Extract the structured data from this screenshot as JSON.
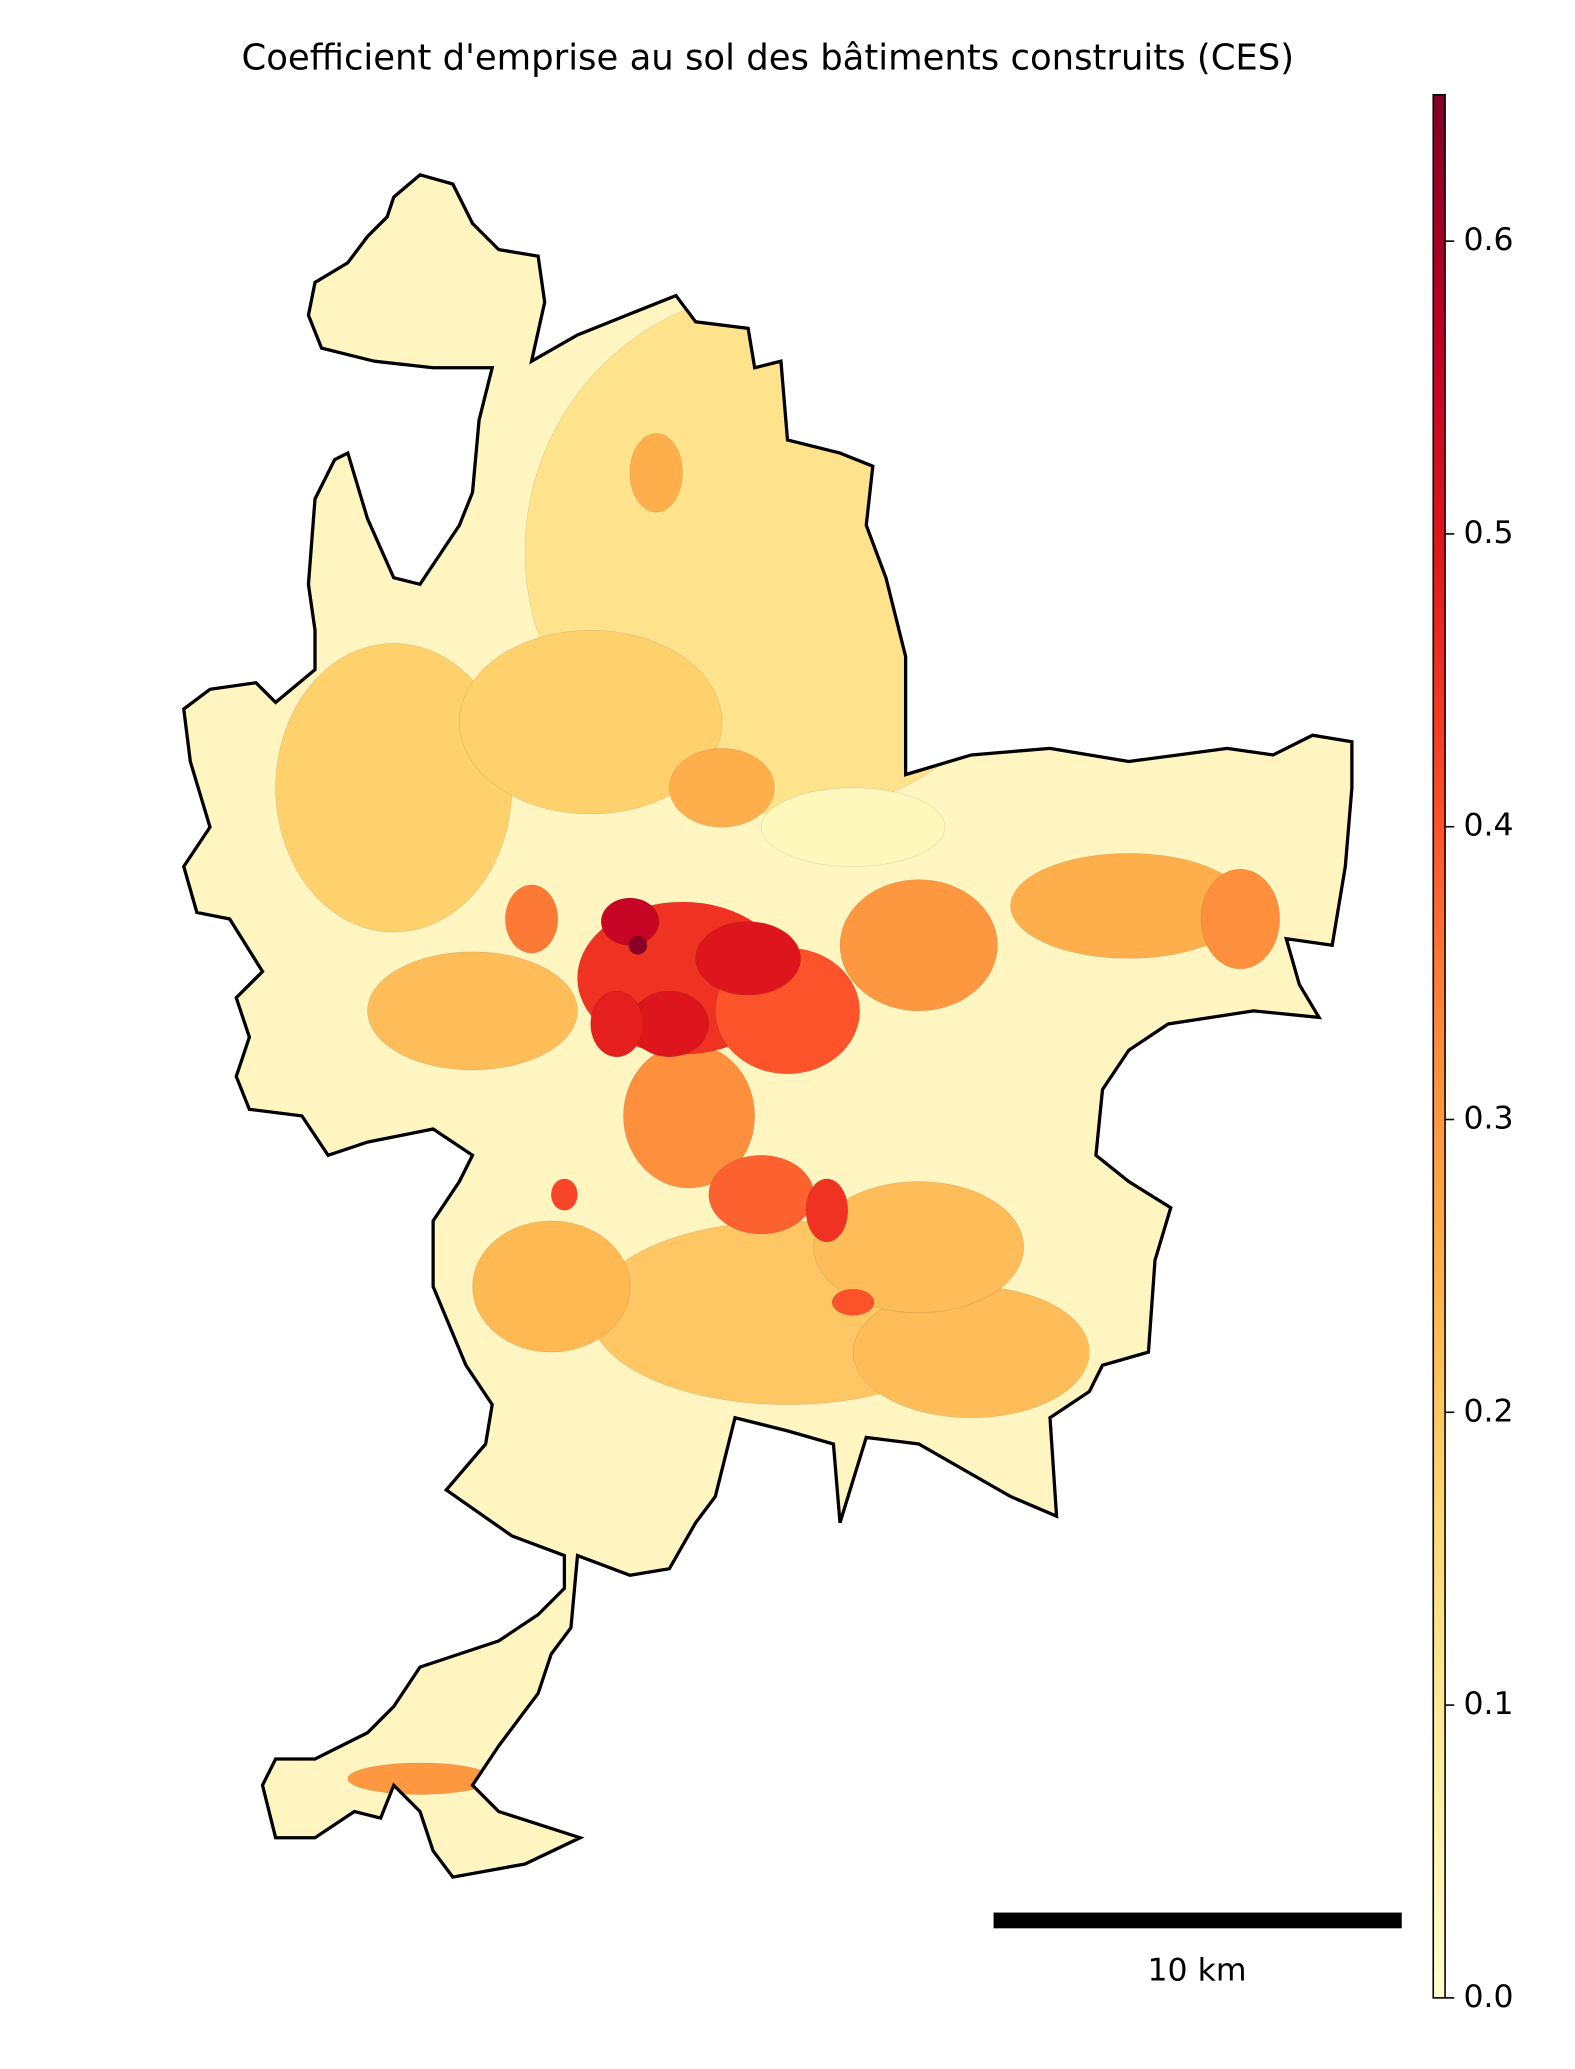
{
  "chart_data": {
    "type": "choropleth",
    "title": "Coefficient d'emprise au sol des bâtiments construits (CES)",
    "values": [
      0.12,
      0.18,
      0.18,
      0.2,
      0.22,
      0.22,
      0.03,
      0.23,
      0.25,
      0.25,
      0.25,
      0.22,
      0.3,
      0.32,
      0.3,
      0.32,
      0.4,
      0.38,
      0.45,
      0.35,
      0.42,
      0.45,
      0.4,
      0.5,
      0.5,
      0.48,
      0.55,
      0.64
    ],
    "colormap": [
      "#ffffcc",
      "#ffeda0",
      "#fed976",
      "#feb24c",
      "#fd8d3c",
      "#fc4e2a",
      "#e31a1c",
      "#bd0026",
      "#800026"
    ],
    "colorbar_lim": [
      0,
      0.65
    ],
    "colorbar_ticks": [
      {
        "value": 0,
        "label": "0.0"
      },
      0.1,
      0.2,
      0.3,
      0.4,
      0.5,
      0.6
    ],
    "scale_bar_label": "10 km"
  }
}
